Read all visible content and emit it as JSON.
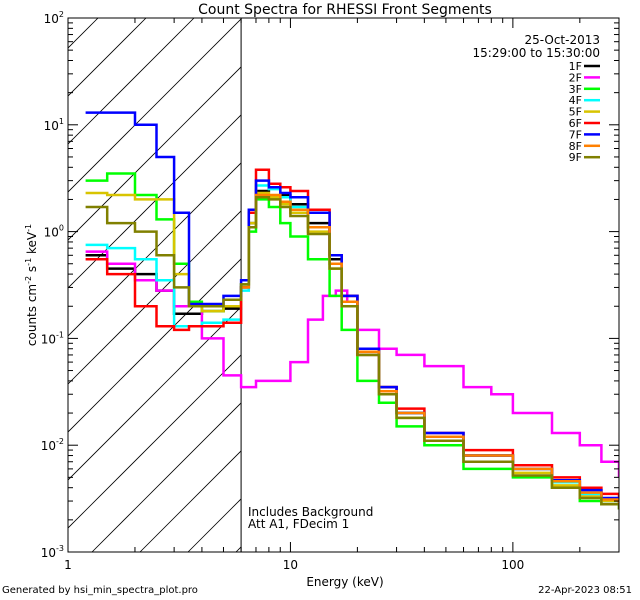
{
  "chart_data": {
    "type": "line",
    "title": "Count Spectra for RHESSI Front Segments",
    "xlabel": "Energy (keV)",
    "ylabel": "counts cm",
    "ylabel_sup1": "-2",
    "ylabel_mid": " s",
    "ylabel_sup2": "-1",
    "ylabel_mid2": " keV",
    "ylabel_sup3": "-1",
    "xscale": "log",
    "yscale": "log",
    "xlim": [
      1,
      300
    ],
    "ylim": [
      0.001,
      100
    ],
    "x_tick_labels": [
      {
        "value": 1,
        "label": "1"
      },
      {
        "value": 10,
        "label": "10"
      },
      {
        "value": 100,
        "label": "100"
      }
    ],
    "y_tick_labels": [
      {
        "value": 100,
        "base": "10",
        "exp": "2"
      },
      {
        "value": 10,
        "base": "10",
        "exp": "1"
      },
      {
        "value": 1,
        "base": "10",
        "exp": "0"
      },
      {
        "value": 0.1,
        "base": "10",
        "exp": "-1"
      },
      {
        "value": 0.01,
        "base": "10",
        "exp": "-2"
      },
      {
        "value": 0.001,
        "base": "10",
        "exp": "-3"
      }
    ],
    "date": "25-Oct-2013",
    "time_range": "15:29:00 to 15:30:00",
    "cutoff_energy": 6,
    "annotations": [
      "Includes Background",
      "Att A1, FDecim 1"
    ],
    "series": [
      {
        "name": "1F",
        "color": "#000000",
        "points": [
          [
            1.2,
            0.6
          ],
          [
            1.5,
            0.45
          ],
          [
            2,
            0.4
          ],
          [
            2.5,
            0.28
          ],
          [
            3,
            0.17
          ],
          [
            3.5,
            0.17
          ],
          [
            4,
            0.18
          ],
          [
            5,
            0.19
          ],
          [
            6,
            0.3
          ],
          [
            6.5,
            1.2
          ],
          [
            7,
            2.4
          ],
          [
            8,
            2.6
          ],
          [
            9,
            2.2
          ],
          [
            10,
            1.8
          ],
          [
            12,
            1.2
          ],
          [
            15,
            0.55
          ],
          [
            17,
            0.25
          ],
          [
            20,
            0.08
          ],
          [
            25,
            0.035
          ],
          [
            30,
            0.02
          ],
          [
            40,
            0.012
          ],
          [
            60,
            0.008
          ],
          [
            100,
            0.006
          ],
          [
            150,
            0.0045
          ],
          [
            200,
            0.0035
          ],
          [
            250,
            0.003
          ],
          [
            300,
            0.0028
          ]
        ]
      },
      {
        "name": "2F",
        "color": "#ff00ff",
        "points": [
          [
            1.2,
            0.65
          ],
          [
            1.5,
            0.5
          ],
          [
            2,
            0.35
          ],
          [
            2.5,
            0.28
          ],
          [
            3,
            0.2
          ],
          [
            4,
            0.1
          ],
          [
            5,
            0.045
          ],
          [
            6,
            0.035
          ],
          [
            7,
            0.04
          ],
          [
            8,
            0.04
          ],
          [
            10,
            0.06
          ],
          [
            12,
            0.15
          ],
          [
            14,
            0.25
          ],
          [
            16,
            0.28
          ],
          [
            18,
            0.22
          ],
          [
            20,
            0.12
          ],
          [
            25,
            0.08
          ],
          [
            30,
            0.07
          ],
          [
            40,
            0.055
          ],
          [
            60,
            0.035
          ],
          [
            80,
            0.03
          ],
          [
            100,
            0.02
          ],
          [
            150,
            0.013
          ],
          [
            200,
            0.01
          ],
          [
            250,
            0.007
          ],
          [
            300,
            0.005
          ]
        ]
      },
      {
        "name": "3F",
        "color": "#00ff00",
        "points": [
          [
            1.2,
            3
          ],
          [
            1.5,
            3.5
          ],
          [
            2,
            2.2
          ],
          [
            2.5,
            1.3
          ],
          [
            3,
            0.5
          ],
          [
            3.5,
            0.22
          ],
          [
            4,
            0.18
          ],
          [
            5,
            0.2
          ],
          [
            6,
            0.32
          ],
          [
            6.5,
            1
          ],
          [
            7,
            2
          ],
          [
            8,
            1.7
          ],
          [
            9,
            1.2
          ],
          [
            10,
            0.9
          ],
          [
            12,
            0.55
          ],
          [
            15,
            0.25
          ],
          [
            17,
            0.12
          ],
          [
            20,
            0.04
          ],
          [
            25,
            0.025
          ],
          [
            30,
            0.015
          ],
          [
            40,
            0.01
          ],
          [
            60,
            0.006
          ],
          [
            100,
            0.005
          ],
          [
            150,
            0.004
          ],
          [
            200,
            0.003
          ],
          [
            250,
            0.0028
          ],
          [
            300,
            0.0025
          ]
        ]
      },
      {
        "name": "4F",
        "color": "#00ffff",
        "points": [
          [
            1.2,
            0.75
          ],
          [
            1.5,
            0.7
          ],
          [
            2,
            0.55
          ],
          [
            2.5,
            0.35
          ],
          [
            3,
            0.13
          ],
          [
            3.5,
            0.13
          ],
          [
            4,
            0.14
          ],
          [
            5,
            0.15
          ],
          [
            6,
            0.28
          ],
          [
            6.5,
            1.1
          ],
          [
            7,
            2.7
          ],
          [
            8,
            2.5
          ],
          [
            9,
            2.1
          ],
          [
            10,
            1.7
          ],
          [
            12,
            1.1
          ],
          [
            15,
            0.5
          ],
          [
            17,
            0.22
          ],
          [
            20,
            0.07
          ],
          [
            25,
            0.03
          ],
          [
            30,
            0.02
          ],
          [
            40,
            0.012
          ],
          [
            60,
            0.007
          ],
          [
            100,
            0.006
          ],
          [
            150,
            0.0045
          ],
          [
            200,
            0.0035
          ],
          [
            250,
            0.003
          ],
          [
            300,
            0.0027
          ]
        ]
      },
      {
        "name": "5F",
        "color": "#d8c400",
        "points": [
          [
            1.2,
            2.3
          ],
          [
            1.5,
            2.2
          ],
          [
            2,
            2
          ],
          [
            2.5,
            2
          ],
          [
            3,
            0.4
          ],
          [
            3.5,
            0.2
          ],
          [
            4,
            0.18
          ],
          [
            5,
            0.2
          ],
          [
            6,
            0.32
          ],
          [
            6.5,
            1.2
          ],
          [
            7,
            2.3
          ],
          [
            8,
            2.1
          ],
          [
            9,
            1.8
          ],
          [
            10,
            1.5
          ],
          [
            12,
            1
          ],
          [
            15,
            0.45
          ],
          [
            17,
            0.2
          ],
          [
            20,
            0.07
          ],
          [
            25,
            0.03
          ],
          [
            30,
            0.018
          ],
          [
            40,
            0.011
          ],
          [
            60,
            0.007
          ],
          [
            100,
            0.0055
          ],
          [
            150,
            0.0042
          ],
          [
            200,
            0.0033
          ],
          [
            250,
            0.003
          ],
          [
            300,
            0.0028
          ]
        ]
      },
      {
        "name": "6F",
        "color": "#ff0000",
        "points": [
          [
            1.2,
            0.55
          ],
          [
            1.5,
            0.4
          ],
          [
            2,
            0.2
          ],
          [
            2.5,
            0.13
          ],
          [
            3,
            0.12
          ],
          [
            3.5,
            0.13
          ],
          [
            4,
            0.13
          ],
          [
            5,
            0.14
          ],
          [
            6,
            0.3
          ],
          [
            6.5,
            1.5
          ],
          [
            7,
            3.8
          ],
          [
            8,
            2.8
          ],
          [
            9,
            2.6
          ],
          [
            10,
            2.4
          ],
          [
            12,
            1.6
          ],
          [
            15,
            0.6
          ],
          [
            17,
            0.25
          ],
          [
            20,
            0.07
          ],
          [
            25,
            0.035
          ],
          [
            30,
            0.022
          ],
          [
            40,
            0.013
          ],
          [
            60,
            0.009
          ],
          [
            100,
            0.0065
          ],
          [
            150,
            0.005
          ],
          [
            200,
            0.004
          ],
          [
            250,
            0.0035
          ],
          [
            300,
            0.003
          ]
        ]
      },
      {
        "name": "7F",
        "color": "#0000ff",
        "points": [
          [
            1.2,
            13
          ],
          [
            1.5,
            13
          ],
          [
            2,
            10
          ],
          [
            2.5,
            5
          ],
          [
            3,
            1.5
          ],
          [
            3.5,
            0.21
          ],
          [
            4,
            0.21
          ],
          [
            5,
            0.25
          ],
          [
            6,
            0.35
          ],
          [
            6.5,
            1.6
          ],
          [
            7,
            3
          ],
          [
            8,
            2.6
          ],
          [
            9,
            2.3
          ],
          [
            10,
            2.1
          ],
          [
            12,
            1.5
          ],
          [
            15,
            0.6
          ],
          [
            17,
            0.25
          ],
          [
            20,
            0.08
          ],
          [
            25,
            0.035
          ],
          [
            30,
            0.02
          ],
          [
            40,
            0.013
          ],
          [
            60,
            0.008
          ],
          [
            100,
            0.006
          ],
          [
            150,
            0.0047
          ],
          [
            200,
            0.0038
          ],
          [
            250,
            0.0032
          ],
          [
            300,
            0.0028
          ]
        ]
      },
      {
        "name": "8F",
        "color": "#ff8000",
        "points": [
          [
            6,
            0.3
          ],
          [
            6.5,
            1.1
          ],
          [
            7,
            2.2
          ],
          [
            8,
            2.2
          ],
          [
            9,
            1.9
          ],
          [
            10,
            1.6
          ],
          [
            12,
            1.1
          ],
          [
            15,
            0.5
          ],
          [
            17,
            0.22
          ],
          [
            20,
            0.075
          ],
          [
            25,
            0.032
          ],
          [
            30,
            0.02
          ],
          [
            40,
            0.012
          ],
          [
            60,
            0.008
          ],
          [
            100,
            0.006
          ],
          [
            150,
            0.0046
          ],
          [
            200,
            0.0036
          ],
          [
            250,
            0.0031
          ],
          [
            300,
            0.0028
          ]
        ]
      },
      {
        "name": "9F",
        "color": "#808000",
        "points": [
          [
            1.2,
            1.7
          ],
          [
            1.5,
            1.2
          ],
          [
            2,
            1
          ],
          [
            2.5,
            0.6
          ],
          [
            3,
            0.3
          ],
          [
            3.5,
            0.2
          ],
          [
            4,
            0.2
          ],
          [
            5,
            0.23
          ],
          [
            6,
            0.32
          ],
          [
            6.5,
            1.1
          ],
          [
            7,
            2.1
          ],
          [
            8,
            2
          ],
          [
            9,
            1.7
          ],
          [
            10,
            1.4
          ],
          [
            12,
            0.95
          ],
          [
            15,
            0.45
          ],
          [
            17,
            0.2
          ],
          [
            20,
            0.07
          ],
          [
            25,
            0.03
          ],
          [
            30,
            0.018
          ],
          [
            40,
            0.011
          ],
          [
            60,
            0.007
          ],
          [
            100,
            0.0052
          ],
          [
            150,
            0.004
          ],
          [
            200,
            0.0032
          ],
          [
            250,
            0.0028
          ],
          [
            300,
            0.0025
          ]
        ]
      }
    ]
  },
  "footer": {
    "left": "Generated by hsi_min_spectra_plot.pro",
    "right": "22-Apr-2023 08:51"
  }
}
